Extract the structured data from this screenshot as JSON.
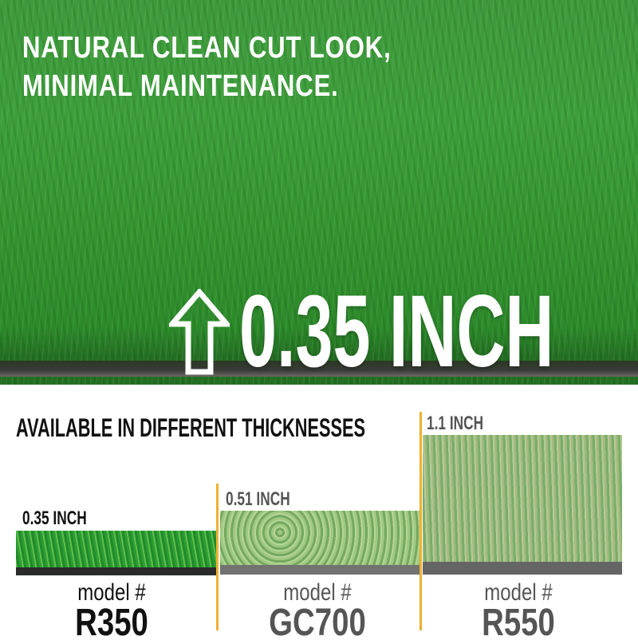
{
  "hero": {
    "title_line1": "NATURAL CLEAN CUT LOOK,",
    "title_line2": "MINIMAL MAINTENANCE.",
    "height_label": "0.35 INCH",
    "icon": "arrow-up-icon"
  },
  "section": {
    "heading": "AVAILABLE IN DIFFERENT THICKNESSES"
  },
  "products": [
    {
      "thickness": "0.35 INCH",
      "model_label": "model #",
      "model": "R350",
      "color": "#111111"
    },
    {
      "thickness": "0.51 INCH",
      "model_label": "model #",
      "model": "GC700",
      "color": "#555555"
    },
    {
      "thickness": "1.1 INCH",
      "model_label": "model #",
      "model": "R550",
      "color": "#555555"
    }
  ],
  "colors": {
    "divider": "#f0b030",
    "grass": "#3c9f3a"
  }
}
